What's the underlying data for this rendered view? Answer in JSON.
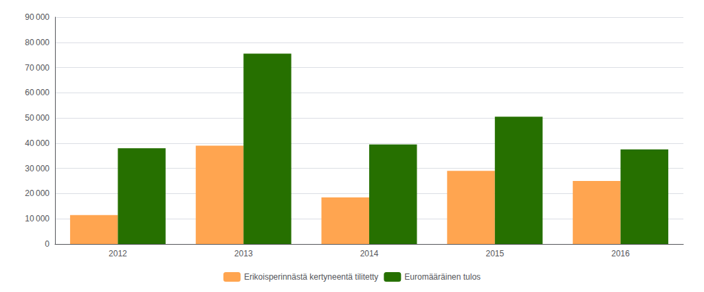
{
  "chart_data": {
    "type": "bar",
    "categories": [
      "2012",
      "2013",
      "2014",
      "2015",
      "2016"
    ],
    "series": [
      {
        "name": "Erikoisperinnästä kertyneentä tilitetty",
        "color": "#FFA550",
        "values": [
          11500,
          39000,
          18500,
          29000,
          25000
        ]
      },
      {
        "name": "Euromääräinen tulos",
        "color": "#267000",
        "values": [
          38000,
          75500,
          39500,
          50500,
          37500
        ]
      }
    ],
    "ylim": [
      0,
      90000
    ],
    "yticks": [
      0,
      {
        "value": 10000,
        "label": "10 000"
      },
      {
        "value": 20000,
        "label": "20 000"
      },
      {
        "value": 30000,
        "label": "30 000"
      },
      {
        "value": 40000,
        "label": "40 000"
      },
      {
        "value": 50000,
        "label": "50 000"
      },
      {
        "value": 60000,
        "label": "60 000"
      },
      {
        "value": 70000,
        "label": "70 000"
      },
      {
        "value": 80000,
        "label": "80 000"
      },
      {
        "value": 90000,
        "label": "90 000"
      }
    ],
    "grid": true,
    "legend": "bottom"
  }
}
